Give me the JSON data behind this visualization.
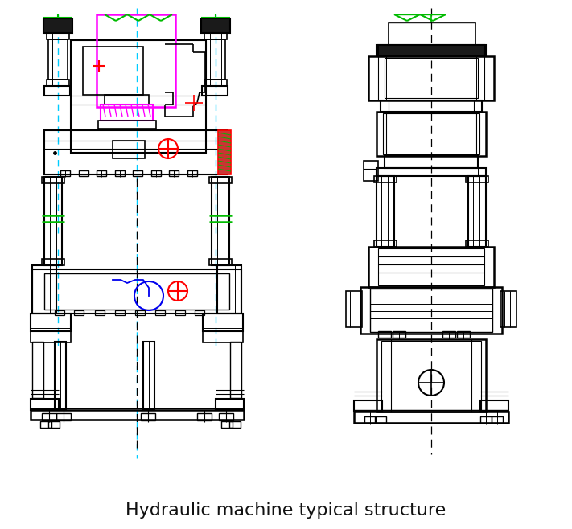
{
  "title": "Hydraulic machine typical structure",
  "title_fontsize": 16,
  "bg_color": "#ffffff",
  "lc": "#000000",
  "cy": "#00ccff",
  "mg": "#ff00ff",
  "gn": "#00bb00",
  "rd": "#ff0000",
  "bl": "#0000ee",
  "dark": "#111111"
}
